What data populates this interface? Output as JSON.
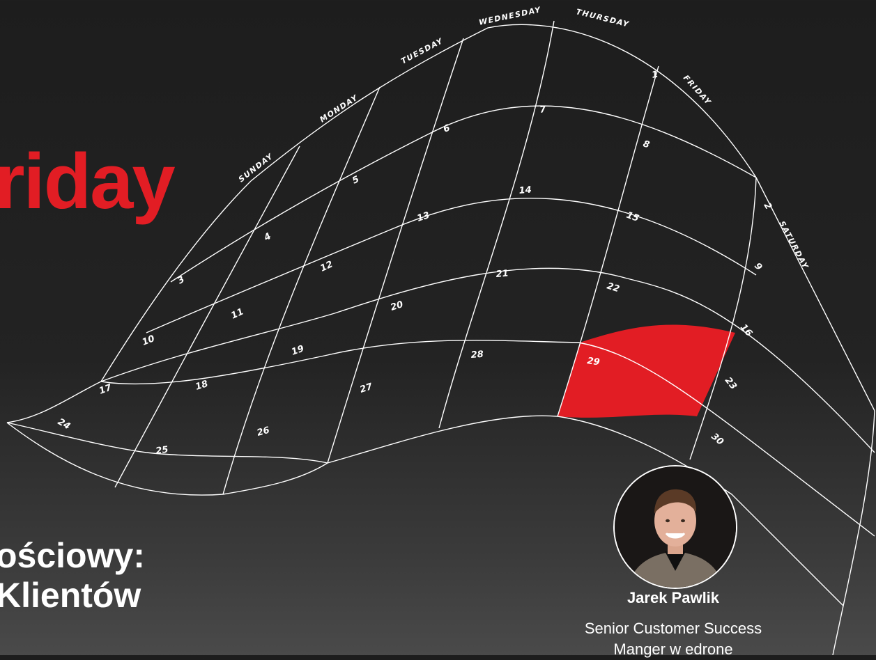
{
  "title_word": "riday",
  "subtitle": {
    "line1": "ościowy:",
    "line2": "Klientów"
  },
  "speaker": {
    "name": "Jarek Pawlik",
    "role_line1": "Senior Customer Success",
    "role_line2": "Manger w edrone"
  },
  "calendar": {
    "days": [
      "SUNDAY",
      "MONDAY",
      "TUESDAY",
      "WEDNESDAY",
      "THURSDAY",
      "FRIDAY",
      "SATURDAY"
    ],
    "dates": [
      "1",
      "2",
      "3",
      "4",
      "5",
      "6",
      "7",
      "8",
      "9",
      "10",
      "11",
      "12",
      "13",
      "14",
      "15",
      "16",
      "17",
      "18",
      "19",
      "20",
      "21",
      "22",
      "23",
      "24",
      "25",
      "26",
      "27",
      "28",
      "29",
      "30"
    ],
    "highlighted_date": "29"
  },
  "colors": {
    "accent": "#e21d24",
    "background": "#1d1d1d",
    "lines": "#ffffff"
  },
  "icons": [
    "avatar-photo"
  ]
}
